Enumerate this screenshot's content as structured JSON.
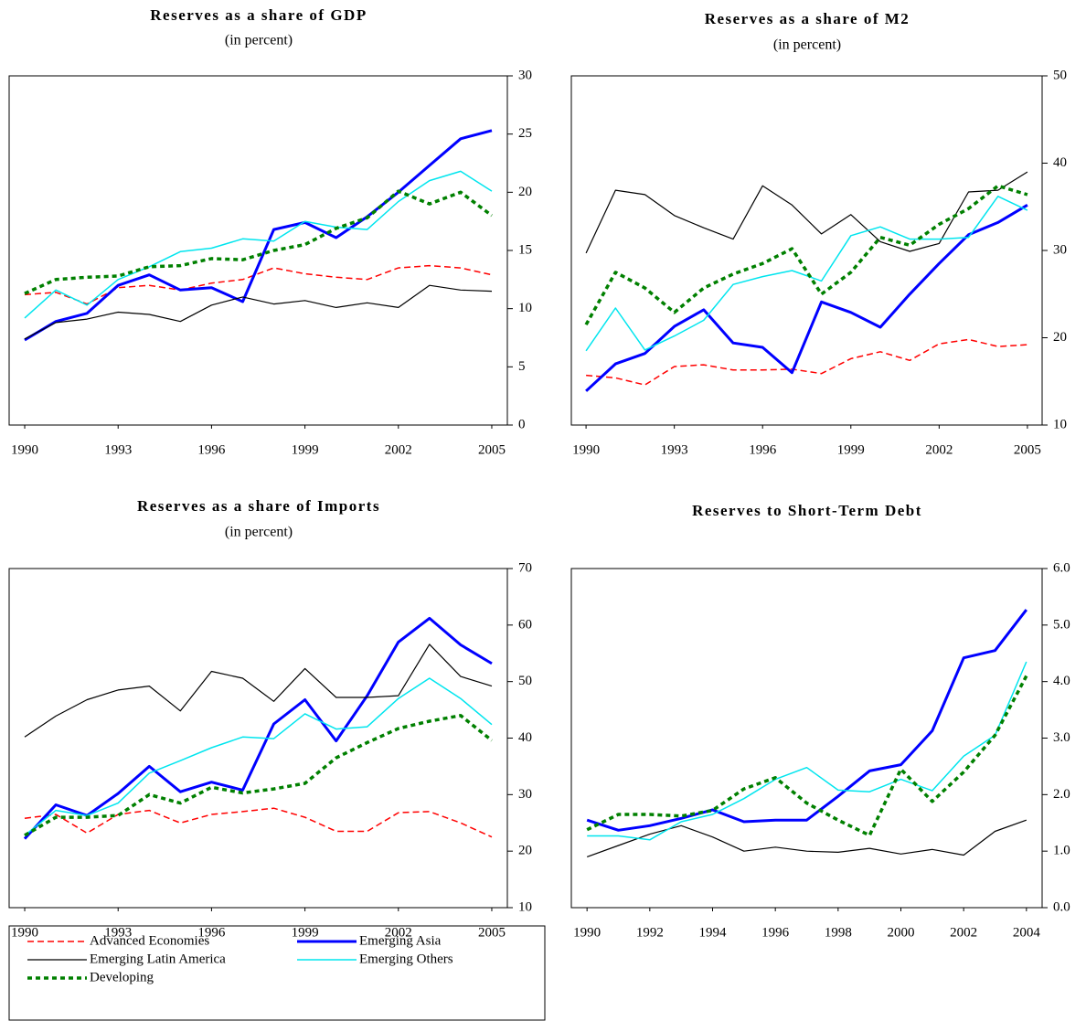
{
  "chart_data": [
    {
      "type": "line",
      "title": "Reserves as a share of GDP",
      "subtitle": "(in percent)",
      "x": [
        1990,
        1991,
        1992,
        1993,
        1994,
        1995,
        1996,
        1997,
        1998,
        1999,
        2000,
        2001,
        2002,
        2003,
        2004,
        2005
      ],
      "xlim": [
        1989.5,
        2005.5
      ],
      "xticks": [
        1990,
        1993,
        1996,
        1999,
        2002,
        2005
      ],
      "ylim": [
        0,
        30
      ],
      "yticks": [
        0,
        5,
        10,
        15,
        20,
        25,
        30
      ],
      "y_axis_side": "right",
      "series": [
        {
          "name": "Advanced Economies",
          "color": "#ff0000",
          "line_style": "dashed",
          "linewidth": 1.5,
          "values": [
            11.2,
            11.4,
            10.4,
            11.8,
            12.0,
            11.6,
            12.2,
            12.5,
            13.5,
            13.0,
            12.7,
            12.5,
            13.5,
            13.7,
            13.5,
            12.9
          ]
        },
        {
          "name": "Emerging Asia",
          "color": "#0000ff",
          "line_style": "solid",
          "linewidth": 3,
          "values": [
            7.3,
            8.9,
            9.6,
            12.0,
            12.9,
            11.6,
            11.8,
            10.6,
            16.8,
            17.4,
            16.1,
            17.9,
            20.0,
            22.3,
            24.6,
            25.3
          ]
        },
        {
          "name": "Emerging Latin America",
          "color": "#000000",
          "line_style": "solid",
          "linewidth": 1.2,
          "values": [
            7.4,
            8.8,
            9.1,
            9.7,
            9.5,
            8.9,
            10.3,
            11.0,
            10.4,
            10.7,
            10.1,
            10.5,
            10.1,
            12.0,
            11.6,
            11.5
          ]
        },
        {
          "name": "Emerging Others",
          "color": "#00e5ee",
          "line_style": "solid",
          "linewidth": 1.5,
          "values": [
            9.2,
            11.6,
            10.3,
            12.5,
            13.6,
            14.9,
            15.2,
            16.0,
            15.8,
            17.5,
            17.0,
            16.8,
            19.2,
            21.0,
            21.8,
            20.1
          ]
        },
        {
          "name": "Developing",
          "color": "#008000",
          "line_style": "dotted",
          "linewidth": 3.5,
          "values": [
            11.3,
            12.5,
            12.7,
            12.8,
            13.6,
            13.7,
            14.3,
            14.2,
            15.0,
            15.5,
            16.9,
            17.8,
            20.1,
            19.0,
            20.0,
            18.0
          ]
        }
      ]
    },
    {
      "type": "line",
      "title": "Reserves as a share of M2",
      "subtitle": "(in percent)",
      "x": [
        1990,
        1991,
        1992,
        1993,
        1994,
        1995,
        1996,
        1997,
        1998,
        1999,
        2000,
        2001,
        2002,
        2003,
        2004,
        2005
      ],
      "xlim": [
        1989.5,
        2005.5
      ],
      "xticks": [
        1990,
        1993,
        1996,
        1999,
        2002,
        2005
      ],
      "ylim": [
        10,
        50
      ],
      "yticks": [
        10,
        20,
        30,
        40,
        50
      ],
      "y_axis_side": "right",
      "series": [
        {
          "name": "Advanced Economies",
          "color": "#ff0000",
          "line_style": "dashed",
          "linewidth": 1.5,
          "values": [
            15.7,
            15.4,
            14.6,
            16.7,
            16.9,
            16.3,
            16.3,
            16.4,
            15.9,
            17.6,
            18.4,
            17.4,
            19.3,
            19.8,
            19.0,
            19.2
          ]
        },
        {
          "name": "Emerging Asia",
          "color": "#0000ff",
          "line_style": "solid",
          "linewidth": 3,
          "values": [
            13.9,
            17.0,
            18.2,
            21.3,
            23.2,
            19.4,
            18.9,
            16.0,
            24.1,
            22.9,
            21.2,
            25.0,
            28.5,
            31.8,
            33.2,
            35.2
          ]
        },
        {
          "name": "Emerging Latin America",
          "color": "#000000",
          "line_style": "solid",
          "linewidth": 1.2,
          "values": [
            29.7,
            36.9,
            36.4,
            34.0,
            32.6,
            31.3,
            37.4,
            35.2,
            31.9,
            34.1,
            31.0,
            29.9,
            30.8,
            36.7,
            36.9,
            39.0
          ]
        },
        {
          "name": "Emerging Others",
          "color": "#00e5ee",
          "line_style": "solid",
          "linewidth": 1.5,
          "values": [
            18.5,
            23.4,
            18.6,
            20.2,
            22.0,
            26.1,
            27.0,
            27.7,
            26.5,
            31.7,
            32.7,
            31.3,
            31.3,
            31.5,
            36.2,
            34.6
          ]
        },
        {
          "name": "Developing",
          "color": "#008000",
          "line_style": "dotted",
          "linewidth": 3.5,
          "values": [
            21.5,
            27.5,
            25.7,
            22.9,
            25.7,
            27.3,
            28.5,
            30.2,
            25.0,
            27.5,
            31.5,
            30.6,
            33.0,
            34.8,
            37.4,
            36.4
          ]
        }
      ]
    },
    {
      "type": "line",
      "title": "Reserves as a share of Imports",
      "subtitle": "(in percent)",
      "x": [
        1990,
        1991,
        1992,
        1993,
        1994,
        1995,
        1996,
        1997,
        1998,
        1999,
        2000,
        2001,
        2002,
        2003,
        2004,
        2005
      ],
      "xlim": [
        1989.5,
        2005.5
      ],
      "xticks": [
        1990,
        1993,
        1996,
        1999,
        2002,
        2005
      ],
      "ylim": [
        10,
        70
      ],
      "yticks": [
        10,
        20,
        30,
        40,
        50,
        60,
        70
      ],
      "y_axis_side": "right",
      "series": [
        {
          "name": "Advanced Economies",
          "color": "#ff0000",
          "line_style": "dashed",
          "linewidth": 1.5,
          "values": [
            25.8,
            26.5,
            23.2,
            26.5,
            27.2,
            25.0,
            26.5,
            27.0,
            27.6,
            26.0,
            23.5,
            23.5,
            26.8,
            27.0,
            25.0,
            22.5
          ]
        },
        {
          "name": "Emerging Asia",
          "color": "#0000ff",
          "line_style": "solid",
          "linewidth": 3,
          "values": [
            22.2,
            28.2,
            26.3,
            30.2,
            35.0,
            30.5,
            32.2,
            30.8,
            42.5,
            46.8,
            39.5,
            47.5,
            57.0,
            61.2,
            56.5,
            53.2
          ]
        },
        {
          "name": "Emerging Latin America",
          "color": "#000000",
          "line_style": "solid",
          "linewidth": 1.2,
          "values": [
            40.2,
            43.9,
            46.8,
            48.5,
            49.2,
            44.8,
            51.8,
            50.6,
            46.5,
            52.3,
            47.2,
            47.2,
            47.5,
            56.6,
            50.9,
            49.2
          ]
        },
        {
          "name": "Emerging Others",
          "color": "#00e5ee",
          "line_style": "solid",
          "linewidth": 1.5,
          "values": [
            22.8,
            27.2,
            26.3,
            28.5,
            33.8,
            36.0,
            38.3,
            40.2,
            39.9,
            44.3,
            41.6,
            42.0,
            47.0,
            50.6,
            47.0,
            42.4
          ]
        },
        {
          "name": "Developing",
          "color": "#008000",
          "line_style": "dotted",
          "linewidth": 3.5,
          "values": [
            22.8,
            26.0,
            26.0,
            26.3,
            30.0,
            28.5,
            31.3,
            30.3,
            31.0,
            32.0,
            36.5,
            39.2,
            41.7,
            43.0,
            44.0,
            39.6
          ]
        }
      ]
    },
    {
      "type": "line",
      "title": "Reserves to Short-Term Debt",
      "x": [
        1990,
        1991,
        1992,
        1993,
        1994,
        1995,
        1996,
        1997,
        1998,
        1999,
        2000,
        2001,
        2002,
        2003,
        2004
      ],
      "xlim": [
        1989.5,
        2004.5
      ],
      "xticks": [
        1990,
        1992,
        1994,
        1996,
        1998,
        2000,
        2002,
        2004
      ],
      "ylim": [
        0,
        6
      ],
      "yticks": [
        {
          "value": 0,
          "label": "0.0"
        },
        {
          "value": 1,
          "label": "1.0"
        },
        {
          "value": 2,
          "label": "2.0"
        },
        {
          "value": 3,
          "label": "3.0"
        },
        {
          "value": 4,
          "label": "4.0"
        },
        {
          "value": 5,
          "label": "5.0"
        },
        {
          "value": 6,
          "label": "6.0"
        }
      ],
      "y_axis_side": "right",
      "series": [
        {
          "name": "Emerging Asia",
          "color": "#0000ff",
          "line_style": "solid",
          "linewidth": 3,
          "values": [
            1.55,
            1.37,
            1.45,
            1.58,
            1.73,
            1.52,
            1.55,
            1.55,
            1.97,
            2.42,
            2.53,
            3.13,
            4.42,
            4.55,
            5.27
          ]
        },
        {
          "name": "Emerging Latin America",
          "color": "#000000",
          "line_style": "solid",
          "linewidth": 1.2,
          "values": [
            0.9,
            1.1,
            1.3,
            1.45,
            1.25,
            1.0,
            1.07,
            1.0,
            0.98,
            1.05,
            0.95,
            1.03,
            0.93,
            1.35,
            1.55
          ]
        },
        {
          "name": "Emerging Others",
          "color": "#00e5ee",
          "line_style": "solid",
          "linewidth": 1.5,
          "values": [
            1.27,
            1.27,
            1.2,
            1.52,
            1.65,
            1.93,
            2.27,
            2.48,
            2.08,
            2.05,
            2.27,
            2.07,
            2.68,
            3.05,
            4.35
          ]
        },
        {
          "name": "Developing",
          "color": "#008000",
          "line_style": "dotted",
          "linewidth": 3.5,
          "values": [
            1.38,
            1.65,
            1.65,
            1.62,
            1.72,
            2.1,
            2.3,
            1.85,
            1.55,
            1.28,
            2.45,
            1.88,
            2.4,
            3.05,
            4.1
          ]
        }
      ]
    }
  ]
}
